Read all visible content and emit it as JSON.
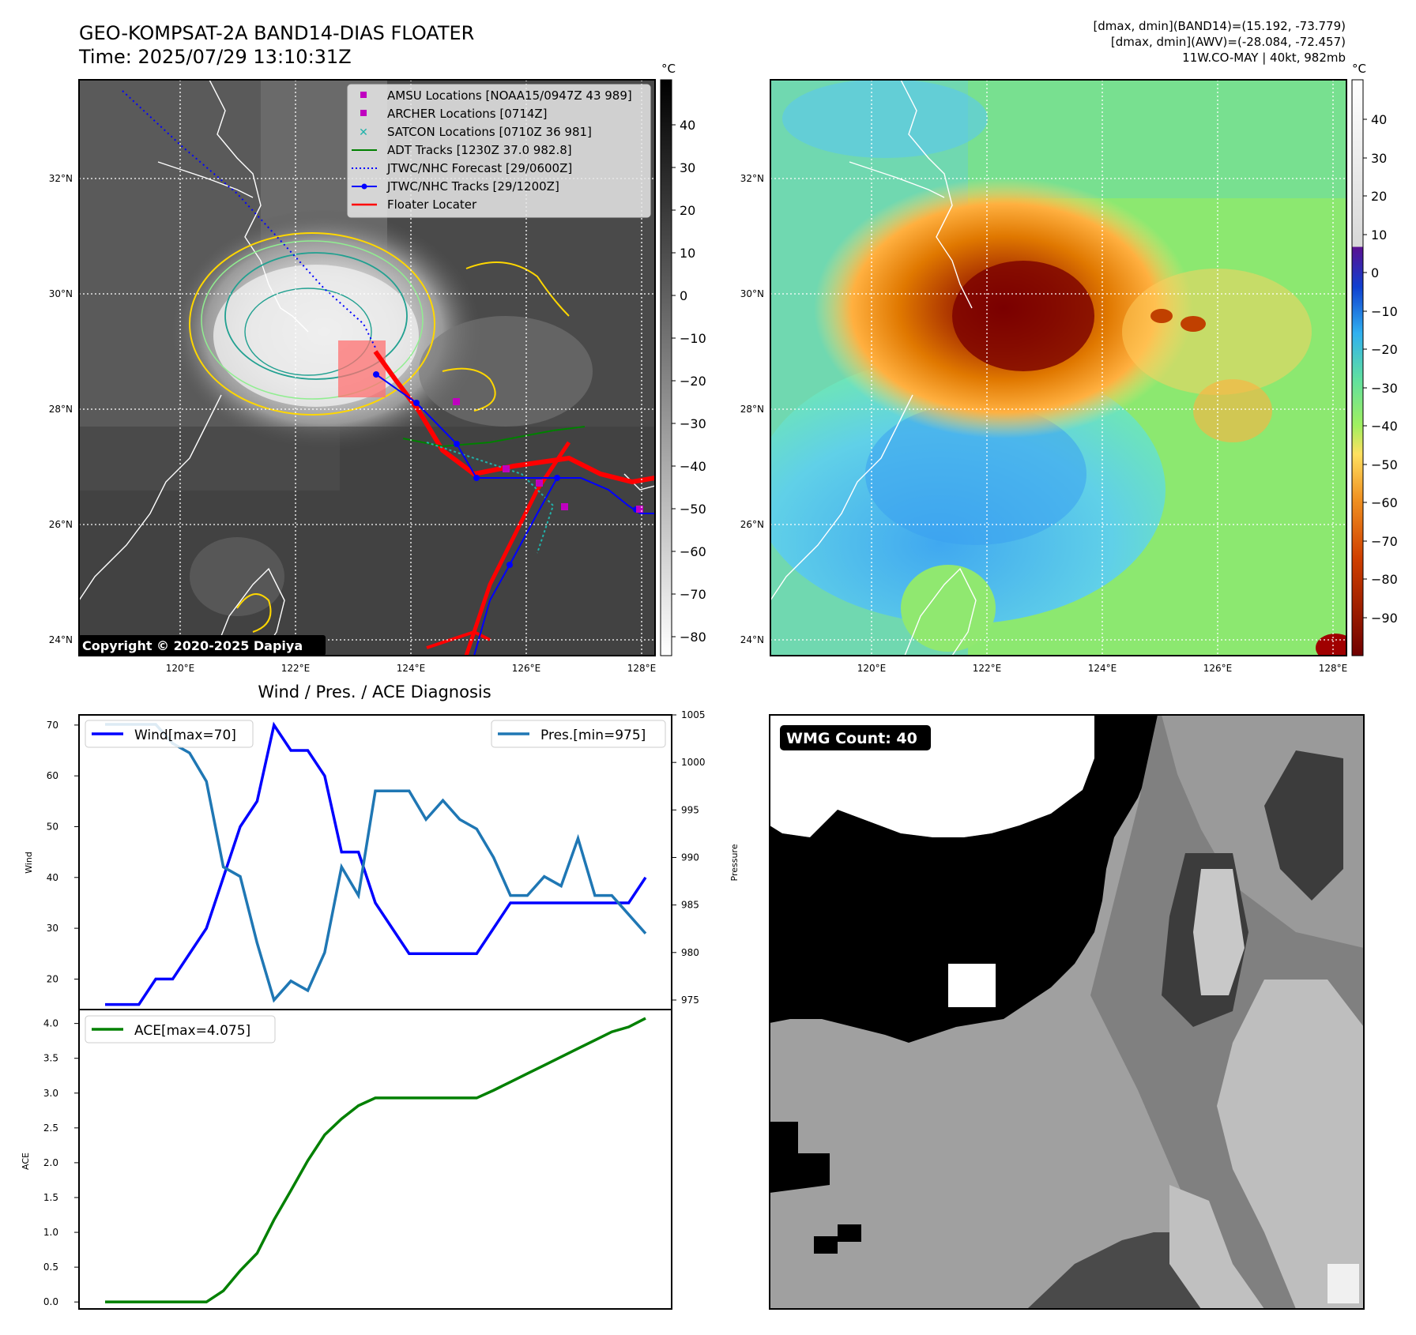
{
  "header": {
    "title_line1": "GEO-KOMPSAT-2A BAND14-DIAS FLOATER",
    "title_line2": "Time: 2025/07/29 13:10:31Z",
    "info_line1": "[dmax, dmin](BAND14)=(15.192, -73.779)",
    "info_line2": "[dmax, dmin](AWV)=(-28.084, -72.457)",
    "info_line3": "11W.CO-MAY | 40kt, 982mb"
  },
  "map": {
    "lon_ticks": [
      "120°E",
      "122°E",
      "124°E",
      "126°E",
      "128°E"
    ],
    "lat_ticks": [
      "32°N",
      "30°N",
      "28°N",
      "26°N",
      "24°N"
    ],
    "copyright": "Copyright © 2020-2025 Dapiya",
    "legend": [
      {
        "label": "AMSU Locations [NOAA15/0947Z 43 989]",
        "color": "#c000c0",
        "marker": "square"
      },
      {
        "label": "ARCHER Locations [0714Z]",
        "color": "#c000c0",
        "marker": "square"
      },
      {
        "label": "SATCON Locations [0710Z 36 981]",
        "color": "#20b2aa",
        "marker": "x"
      },
      {
        "label": "ADT Tracks [1230Z 37.0 982.8]",
        "color": "#008000",
        "marker": "line"
      },
      {
        "label": "JTWC/NHC Forecast [29/0600Z]",
        "color": "#0000ff",
        "marker": "dotted"
      },
      {
        "label": "JTWC/NHC Tracks [29/1200Z]",
        "color": "#0000ff",
        "marker": "line-dot"
      },
      {
        "label": "Floater Locater",
        "color": "#ff0000",
        "marker": "line"
      }
    ],
    "colorbar_unit": "°C",
    "colorbar1_ticks": [
      "40",
      "30",
      "20",
      "10",
      "0",
      "−10",
      "−20",
      "−30",
      "−40",
      "−50",
      "−60",
      "−70",
      "−80"
    ],
    "colorbar2_ticks": [
      "40",
      "30",
      "20",
      "10",
      "0",
      "−10",
      "−20",
      "−30",
      "−40",
      "−50",
      "−60",
      "−70",
      "−80",
      "−90"
    ]
  },
  "diagnosis": {
    "title": "Wind / Pres. / ACE Diagnosis",
    "wind_ylabel": "Wind",
    "pres_ylabel": "Pressure",
    "ace_ylabel": "ACE",
    "wind_legend": "Wind[max=70]",
    "pres_legend": "Pres.[min=975]",
    "ace_legend": "ACE[max=4.075]",
    "wind_ticks": [
      "70",
      "60",
      "50",
      "40",
      "30",
      "20"
    ],
    "pres_ticks": [
      "1005",
      "1000",
      "995",
      "990",
      "985",
      "980",
      "975"
    ],
    "ace_ticks": [
      "4.0",
      "3.5",
      "3.0",
      "2.5",
      "2.0",
      "1.5",
      "1.0",
      "0.5",
      "0.0"
    ]
  },
  "wmg": {
    "label": "WMG Count: 40"
  },
  "chart_data": [
    {
      "type": "line",
      "title": "Wind / Pres. / ACE Diagnosis",
      "x": [
        0,
        1,
        2,
        3,
        4,
        5,
        6,
        7,
        8,
        9,
        10,
        11,
        12,
        13,
        14,
        15,
        16,
        17,
        18,
        19,
        20,
        21,
        22,
        23,
        24,
        25,
        26,
        27,
        28,
        29,
        30,
        31,
        32
      ],
      "series": [
        {
          "name": "Wind[max=70]",
          "axis": "left",
          "color": "#0000ff",
          "values": [
            15,
            15,
            15,
            20,
            20,
            25,
            30,
            40,
            50,
            55,
            70,
            65,
            65,
            60,
            45,
            45,
            35,
            30,
            25,
            25,
            25,
            25,
            25,
            30,
            35,
            35,
            35,
            35,
            35,
            35,
            35,
            35,
            40
          ]
        },
        {
          "name": "Pres.[min=975]",
          "axis": "right",
          "color": "#1f77b4",
          "values": [
            1004,
            1004,
            1004,
            1004,
            1002,
            1001,
            998,
            989,
            988,
            981,
            975,
            977,
            976,
            980,
            989,
            986,
            997,
            997,
            997,
            994,
            996,
            994,
            993,
            990,
            986,
            986,
            988,
            987,
            992,
            986,
            986,
            984,
            982
          ]
        }
      ],
      "ylim_left": [
        14,
        72
      ],
      "ylim_right": [
        974,
        1005
      ]
    },
    {
      "type": "line",
      "x": [
        0,
        1,
        2,
        3,
        4,
        5,
        6,
        7,
        8,
        9,
        10,
        11,
        12,
        13,
        14,
        15,
        16,
        17,
        18,
        19,
        20,
        21,
        22,
        23,
        24,
        25,
        26,
        27,
        28,
        29,
        30,
        31,
        32
      ],
      "series": [
        {
          "name": "ACE[max=4.075]",
          "color": "#008000",
          "values": [
            0,
            0,
            0,
            0,
            0,
            0,
            0,
            0.16,
            0.45,
            0.7,
            1.18,
            1.6,
            2.03,
            2.4,
            2.63,
            2.82,
            2.93,
            2.93,
            2.93,
            2.93,
            2.93,
            2.93,
            2.93,
            3.04,
            3.16,
            3.28,
            3.4,
            3.52,
            3.64,
            3.76,
            3.88,
            3.95,
            4.075
          ]
        }
      ],
      "ylim": [
        -0.1,
        4.2
      ]
    }
  ]
}
